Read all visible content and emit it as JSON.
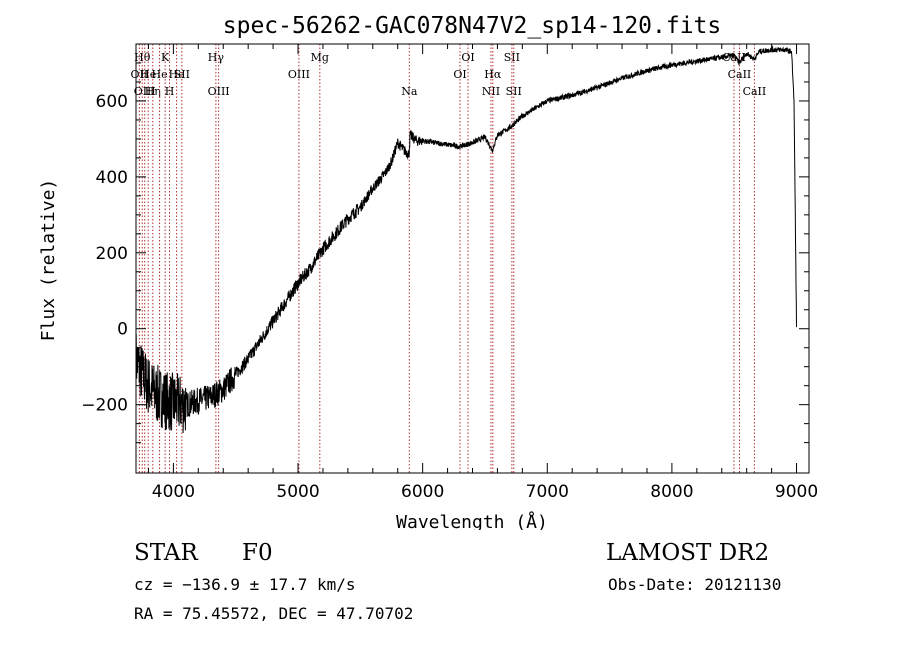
{
  "chart_data": {
    "type": "line",
    "title": "spec-56262-GAC078N47V2_sp14-120.fits",
    "xlabel": "Wavelength (Å)",
    "ylabel": "Flux (relative)",
    "xlim": [
      3700,
      9100
    ],
    "ylim": [
      -380,
      750
    ],
    "xticks": [
      4000,
      5000,
      6000,
      7000,
      8000,
      9000
    ],
    "yticks": [
      -200,
      0,
      200,
      400,
      600
    ],
    "xtick_labels": [
      "4000",
      "5000",
      "6000",
      "7000",
      "8000",
      "9000"
    ],
    "ytick_labels": [
      "−200",
      "0",
      "200",
      "400",
      "600"
    ],
    "grid": false,
    "line_color": "#000000",
    "marker_color": "#b03030",
    "series": [
      {
        "x": [
          3700,
          3750,
          3800,
          3850,
          3900,
          3950,
          4000,
          4100,
          4200,
          4300,
          4400,
          4500,
          4600,
          4700,
          4800,
          4900,
          5000,
          5100,
          5200,
          5300,
          5400,
          5500,
          5600,
          5700,
          5750,
          5800,
          5850,
          5890,
          5900,
          5950,
          6000,
          6100,
          6200,
          6300,
          6400,
          6500,
          6560,
          6600,
          6700,
          6800,
          6900,
          7000,
          7200,
          7400,
          7600,
          7800,
          8000,
          8200,
          8400,
          8500,
          8540,
          8600,
          8660,
          8700,
          8800,
          8900,
          8960,
          8980,
          8990,
          9000
        ],
        "y": [
          -80,
          -120,
          -150,
          -170,
          -180,
          -190,
          -195,
          -200,
          -190,
          -180,
          -160,
          -120,
          -80,
          -30,
          20,
          70,
          120,
          160,
          210,
          250,
          290,
          320,
          370,
          410,
          440,
          490,
          470,
          460,
          510,
          495,
          495,
          490,
          485,
          480,
          490,
          505,
          470,
          510,
          530,
          560,
          580,
          600,
          615,
          635,
          660,
          680,
          695,
          705,
          715,
          720,
          700,
          725,
          710,
          730,
          735,
          735,
          730,
          600,
          300,
          0
        ]
      }
    ],
    "lines": [
      {
        "x": 3750,
        "label": "Hθ",
        "row": 1
      },
      {
        "x": 3727,
        "label": "OII",
        "row": 2
      },
      {
        "x": 3770,
        "label": "OIII",
        "row": 3
      },
      {
        "x": 3798,
        "label": "He",
        "row": 2
      },
      {
        "x": 3835,
        "label": "Hη",
        "row": 3
      },
      {
        "x": 3889,
        "label": "He",
        "row": 2
      },
      {
        "x": 3934,
        "label": "K",
        "row": 1
      },
      {
        "x": 3969,
        "label": "H",
        "row": 3
      },
      {
        "x": 4026,
        "label": "He",
        "row": 2
      },
      {
        "x": 4068,
        "label": "SII",
        "row": 2
      },
      {
        "x": 4341,
        "label": "Hγ",
        "row": 1
      },
      {
        "x": 4363,
        "label": "OIII",
        "row": 3
      },
      {
        "x": 5007,
        "label": "OIII",
        "row": 2
      },
      {
        "x": 5175,
        "label": "Mg",
        "row": 1
      },
      {
        "x": 5893,
        "label": "Na",
        "row": 3
      },
      {
        "x": 6300,
        "label": "OI",
        "row": 2
      },
      {
        "x": 6364,
        "label": "OI",
        "row": 1
      },
      {
        "x": 6548,
        "label": "NII",
        "row": 3
      },
      {
        "x": 6563,
        "label": "Hα",
        "row": 2
      },
      {
        "x": 6716,
        "label": "SII",
        "row": 1
      },
      {
        "x": 6731,
        "label": "SII",
        "row": 3
      },
      {
        "x": 8498,
        "label": "CaII",
        "row": 1
      },
      {
        "x": 8542,
        "label": "CaII",
        "row": 2
      },
      {
        "x": 8662,
        "label": "CaII",
        "row": 3
      }
    ]
  },
  "info": {
    "class_label": "STAR",
    "subclass": "F0",
    "survey": "LAMOST DR2",
    "cz": "cz = −136.9 ± 17.7 km/s",
    "obs_date": "Obs-Date: 20121130",
    "coords": "RA =  75.45572, DEC =  47.70702"
  }
}
